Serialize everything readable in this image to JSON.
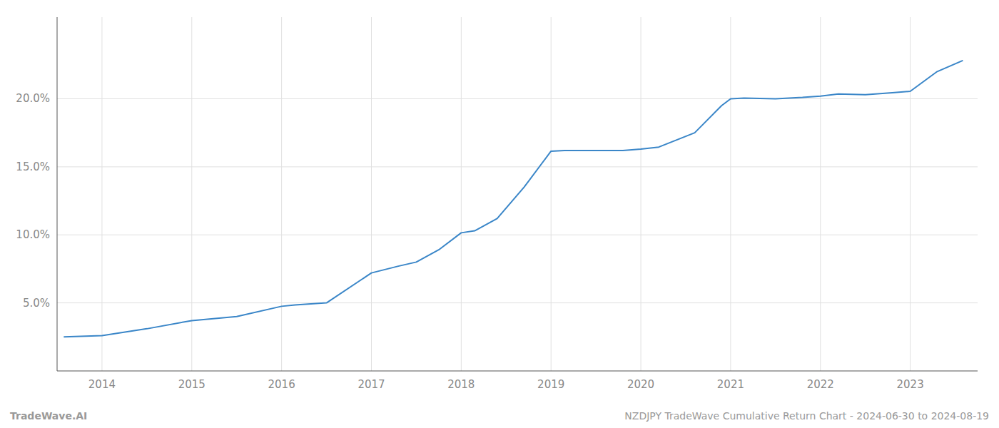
{
  "chart_data": {
    "type": "line",
    "x": [
      2013.58,
      2014.0,
      2014.5,
      2015.0,
      2015.5,
      2016.0,
      2016.15,
      2016.5,
      2017.0,
      2017.3,
      2017.5,
      2017.75,
      2018.0,
      2018.15,
      2018.4,
      2018.7,
      2019.0,
      2019.15,
      2019.5,
      2019.8,
      2020.0,
      2020.2,
      2020.6,
      2020.9,
      2021.0,
      2021.15,
      2021.5,
      2021.8,
      2022.0,
      2022.2,
      2022.5,
      2022.8,
      2023.0,
      2023.3,
      2023.58
    ],
    "values": [
      2.5,
      2.6,
      3.1,
      3.7,
      4.0,
      4.75,
      4.85,
      5.0,
      7.2,
      7.7,
      8.0,
      8.9,
      10.15,
      10.3,
      11.2,
      13.5,
      16.15,
      16.2,
      16.2,
      16.2,
      16.3,
      16.45,
      17.5,
      19.5,
      20.0,
      20.05,
      20.0,
      20.1,
      20.2,
      20.35,
      20.3,
      20.45,
      20.55,
      22.0,
      22.8
    ],
    "color": "#3a86c8",
    "xlim": [
      2013.5,
      2023.75
    ],
    "xticks": [
      2014,
      2015,
      2016,
      2017,
      2018,
      2019,
      2020,
      2021,
      2022,
      2023
    ],
    "ylim": [
      0,
      26
    ],
    "yticks": [
      {
        "value": 5.0,
        "label": "5.0%"
      },
      {
        "value": 10.0,
        "label": "10.0%"
      },
      {
        "value": 15.0,
        "label": "15.0%"
      },
      {
        "value": 20.0,
        "label": "20.0%"
      }
    ],
    "grid": true,
    "annotations": [
      "TradeWave.AI",
      "NZDJPY TradeWave Cumulative Return Chart - 2024-06-30 to 2024-08-19"
    ]
  }
}
